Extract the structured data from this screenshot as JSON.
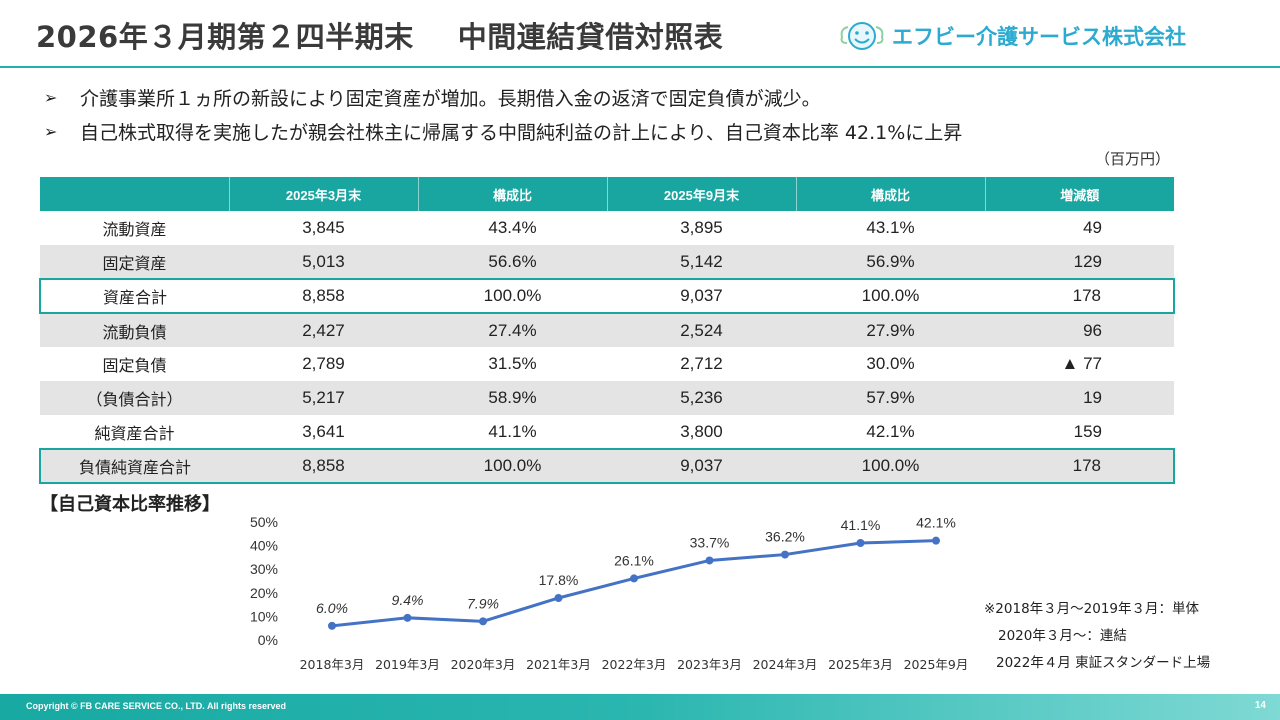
{
  "header": {
    "title": "2026年３月期第２四半期末",
    "subtitle": "中間連結貸借対照表",
    "company_name": "エフビー介護サービス株式会社"
  },
  "bullets": [
    "介護事業所１ヵ所の新設により固定資産が増加。長期借入金の返済で固定負債が減少。",
    "自己株式取得を実施したが親会社株主に帰属する中間純利益の計上により、自己資本比率 42.1%に上昇"
  ],
  "unit": "（百万円）",
  "table": {
    "headers": [
      "",
      "2025年3月末",
      "構成比",
      "2025年9月末",
      "構成比",
      "増減額"
    ],
    "rows": [
      [
        "流動資産",
        "3,845",
        "43.4%",
        "3,895",
        "43.1%",
        "49"
      ],
      [
        "固定資産",
        "5,013",
        "56.6%",
        "5,142",
        "56.9%",
        "129"
      ],
      [
        "資産合計",
        "8,858",
        "100.0%",
        "9,037",
        "100.0%",
        "178"
      ],
      [
        "流動負債",
        "2,427",
        "27.4%",
        "2,524",
        "27.9%",
        "96"
      ],
      [
        "固定負債",
        "2,789",
        "31.5%",
        "2,712",
        "30.0%",
        "▲ 77"
      ],
      [
        "（負債合計）",
        "5,217",
        "58.9%",
        "5,236",
        "57.9%",
        "19"
      ],
      [
        "純資産合計",
        "3,641",
        "41.1%",
        "3,800",
        "42.1%",
        "159"
      ],
      [
        "負債純資産合計",
        "8,858",
        "100.0%",
        "9,037",
        "100.0%",
        "178"
      ]
    ]
  },
  "chart_title": "【自己資本比率推移】",
  "chart_data": {
    "type": "line",
    "title": "自己資本比率推移",
    "categories": [
      "2018年3月",
      "2019年3月",
      "2020年3月",
      "2021年3月",
      "2022年3月",
      "2023年3月",
      "2024年3月",
      "2025年3月",
      "2025年9月"
    ],
    "values": [
      6.0,
      9.4,
      7.9,
      17.8,
      26.1,
      33.7,
      36.2,
      41.1,
      42.1
    ],
    "labels": [
      "6.0%",
      "9.4%",
      "7.9%",
      "17.8%",
      "26.1%",
      "33.7%",
      "36.2%",
      "41.1%",
      "42.1%"
    ],
    "ylim": [
      0,
      50
    ],
    "yticks": [
      "0%",
      "10%",
      "20%",
      "30%",
      "40%",
      "50%"
    ],
    "line_color": "#4472c4"
  },
  "notes": [
    "※2018年３月～2019年３月：単体",
    "2020年３月～：連結",
    "2022年４月 東証スタンダード上場"
  ],
  "footer": {
    "copyright": "Copyright © FB CARE SERVICE CO., LTD. All rights reserved",
    "page": "14"
  }
}
